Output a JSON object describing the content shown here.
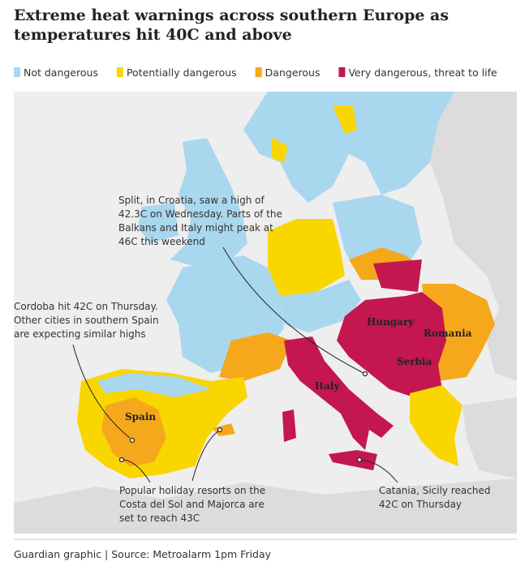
{
  "title": "Extreme heat warnings across southern Europe as temperatures hit 40C and above",
  "legend": [
    {
      "label": "Not dangerous",
      "color": "#a9d7ee"
    },
    {
      "label": "Potentially dangerous",
      "color": "#f9d600"
    },
    {
      "label": "Dangerous",
      "color": "#f5a81c"
    },
    {
      "label": "Very dangerous, threat to life",
      "color": "#c4174f"
    }
  ],
  "countries": [
    "Hungary",
    "Romania",
    "Serbia",
    "Italy",
    "Spain"
  ],
  "annotations": [
    {
      "lines": [
        "Split, in Croatia, saw a high of",
        "42.3C on Wednesday. Parts of the",
        "Balkans and Italy might peak at",
        "46C this weekend"
      ]
    },
    {
      "lines": [
        "Cordoba hit 42C on Thursday.",
        "Other cities in southern Spain",
        "are expecting similar highs"
      ]
    },
    {
      "lines": [
        "Popular holiday resorts on the",
        "Costa del Sol and Majorca are",
        "set to reach 43C"
      ]
    },
    {
      "lines": [
        "Catania, Sicily reached",
        "42C on Thursday"
      ]
    }
  ],
  "source": "Guardian graphic | Source: Metroalarm 1pm Friday"
}
